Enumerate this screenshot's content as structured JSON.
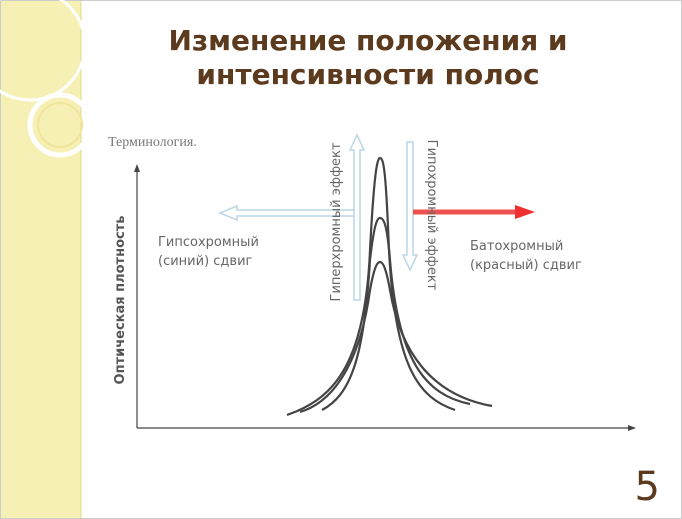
{
  "slide": {
    "title_lines": [
      "Изменение положения и",
      "интенсивности полос"
    ],
    "subtitle": "Терминология.",
    "y_axis_label": "Оптическая плотность",
    "hypsochromic_lines": [
      "Гипсохромный",
      "(синий) сдвиг"
    ],
    "bathochromic_lines": [
      "Батохромный",
      "(красный) сдвиг"
    ],
    "hyperchromic": "Гиперхромный эффект",
    "hypochromic": "Гипохромный эффект",
    "page_number": "5"
  }
}
